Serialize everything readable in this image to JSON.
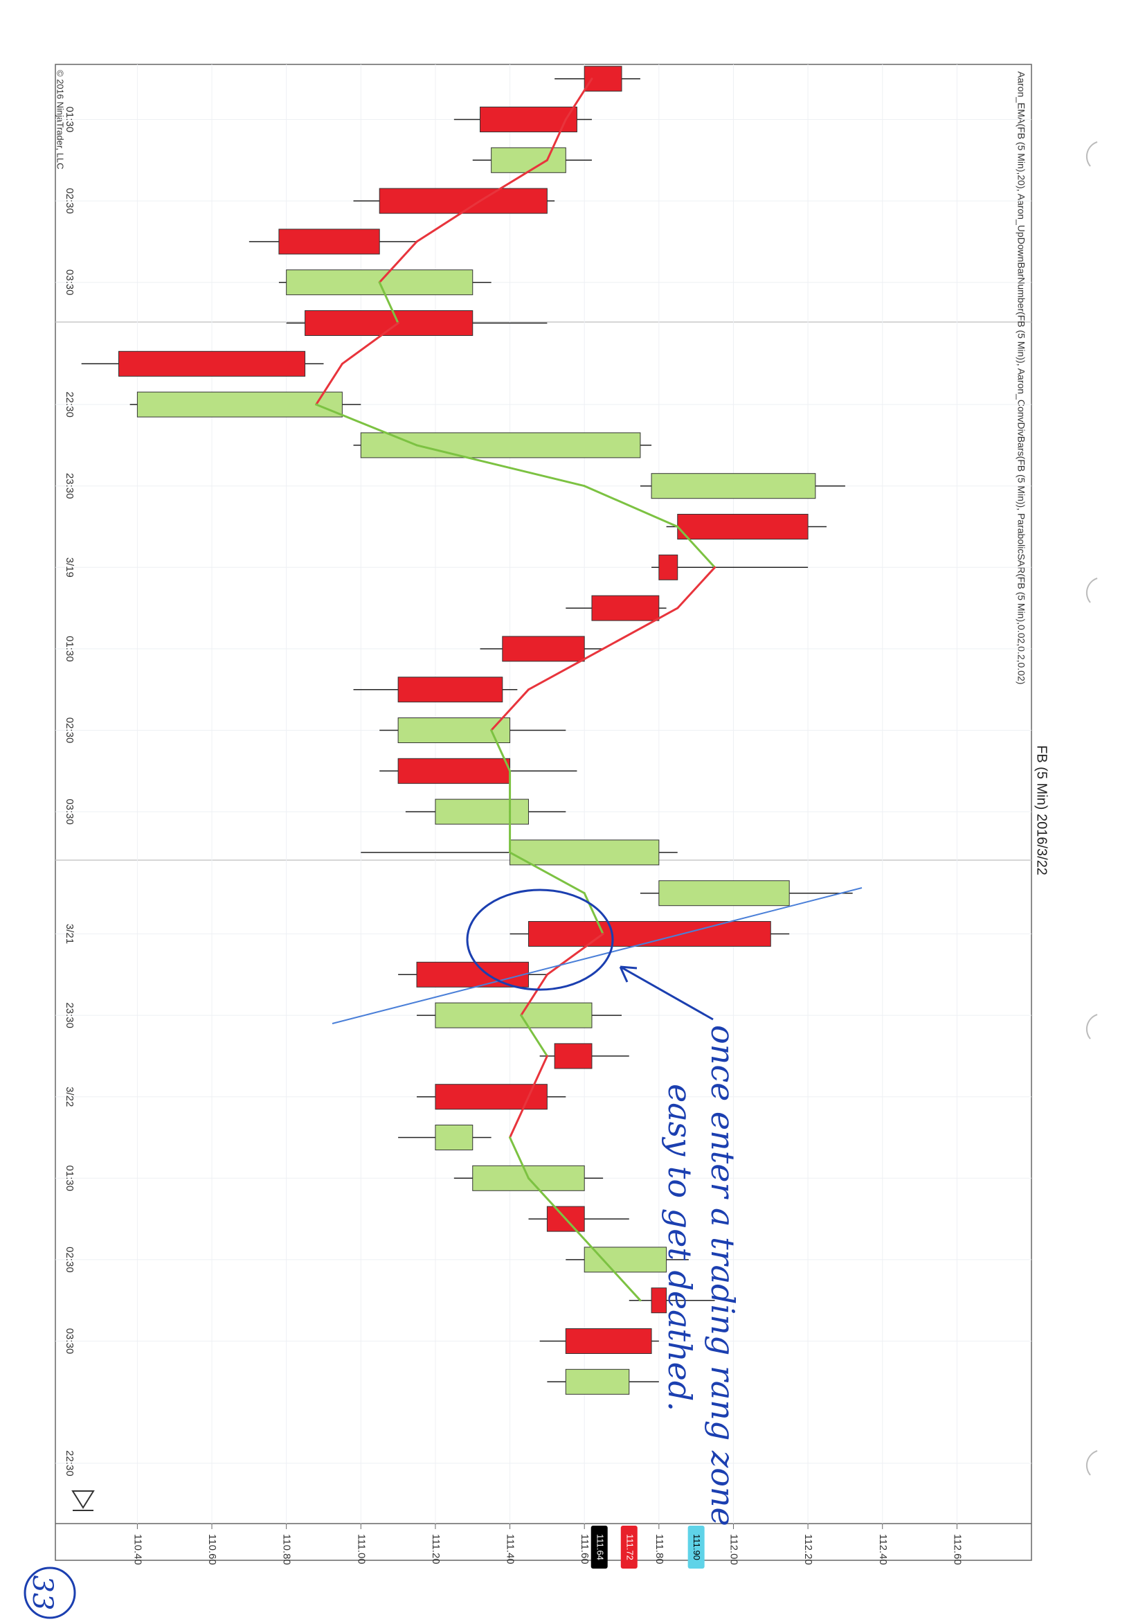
{
  "chart_data": {
    "type": "candlestick",
    "title": "FB (5 Min) 2016/3/22",
    "subtitle": "Aaron_EMA(FB (5 Min),20), Aaron_UpDownBarNumber(FB (5 Min)), Aaron_ConvDivBars(FB (5 Min)), ParabolicSAR(FB (5 Min),0.02,0.2,0.02)",
    "footer": "© 2016 NinjaTrader, LLC",
    "categories": [
      null,
      "01:30",
      null,
      "02:30",
      null,
      "03:30",
      null,
      null,
      "22:30",
      null,
      "23:30",
      null,
      "3/19",
      null,
      "01:30",
      null,
      "02:30",
      null,
      "03:30",
      null,
      null,
      "3/21",
      null,
      "23:30",
      null,
      "3/22",
      null,
      "01:30",
      null,
      "02:30",
      null,
      "03:30",
      null,
      null,
      "22:30"
    ],
    "open": [
      111.7,
      111.58,
      111.35,
      111.5,
      111.05,
      110.8,
      111.3,
      110.85,
      110.4,
      111.0,
      111.78,
      112.2,
      111.85,
      111.8,
      111.6,
      111.38,
      111.1,
      111.4,
      111.2,
      111.4,
      111.8,
      112.1,
      111.45,
      111.2,
      111.62,
      111.5,
      111.2,
      111.3,
      111.6,
      111.6,
      111.82,
      111.78,
      111.55,
      null,
      null
    ],
    "high": [
      111.75,
      111.62,
      111.62,
      111.52,
      111.15,
      111.35,
      111.5,
      110.9,
      111.0,
      111.78,
      112.3,
      112.25,
      112.2,
      111.82,
      111.65,
      111.42,
      111.55,
      111.58,
      111.55,
      111.85,
      112.32,
      112.15,
      111.5,
      111.7,
      111.72,
      111.55,
      111.35,
      111.65,
      111.72,
      111.88,
      111.95,
      111.8,
      111.8,
      null,
      null
    ],
    "low": [
      111.52,
      111.25,
      111.3,
      110.98,
      110.7,
      110.78,
      110.8,
      110.25,
      110.38,
      110.98,
      111.75,
      111.82,
      111.78,
      111.55,
      111.32,
      110.98,
      111.05,
      111.05,
      111.12,
      111.0,
      111.75,
      111.4,
      111.1,
      111.15,
      111.48,
      111.15,
      111.1,
      111.25,
      111.45,
      111.55,
      111.72,
      111.48,
      111.5,
      null,
      null
    ],
    "close": [
      111.6,
      111.32,
      111.55,
      111.05,
      110.78,
      111.3,
      110.85,
      110.35,
      110.95,
      111.75,
      112.22,
      111.85,
      111.8,
      111.62,
      111.38,
      111.1,
      111.4,
      111.1,
      111.45,
      111.8,
      112.15,
      111.45,
      111.15,
      111.62,
      111.52,
      111.2,
      111.3,
      111.6,
      111.5,
      111.82,
      111.78,
      111.55,
      111.72,
      null,
      null
    ],
    "up_color": "#b8e184",
    "down_color": "#e8202a",
    "ema": {
      "values": [
        111.62,
        111.55,
        111.5,
        111.32,
        111.15,
        111.05,
        111.1,
        110.95,
        110.88,
        111.15,
        111.6,
        111.85,
        111.95,
        111.85,
        111.65,
        111.45,
        111.35,
        111.4,
        111.4,
        111.4,
        111.6,
        111.65,
        111.5,
        111.43,
        111.5,
        111.45,
        111.4,
        111.45,
        111.55,
        111.65,
        111.75,
        null,
        null,
        null,
        null
      ],
      "up_color": "#7cc242",
      "down_color": "#e8343c"
    },
    "ylim": [
      110.18,
      112.8
    ],
    "yticks": [
      {
        "value": 110.4,
        "label": "110.40"
      },
      {
        "value": 110.6,
        "label": "110.60"
      },
      {
        "value": 110.8,
        "label": "110.80"
      },
      {
        "value": 111.0,
        "label": "111.00"
      },
      {
        "value": 111.2,
        "label": "111.20"
      },
      {
        "value": 111.4,
        "label": "111.40"
      },
      {
        "value": 111.6,
        "label": "111.60"
      },
      {
        "value": 111.8,
        "label": "111.80"
      },
      {
        "value": 112.0,
        "label": "112.00"
      },
      {
        "value": 112.2,
        "label": "112.20"
      },
      {
        "value": 112.4,
        "label": "112.40"
      },
      {
        "value": 112.6,
        "label": "112.60"
      }
    ],
    "price_markers": [
      {
        "value": 111.72,
        "label": "111.72",
        "color": "#e8202a"
      },
      {
        "value": 111.64,
        "label": "111.64",
        "color": "#000000"
      },
      {
        "value": 111.9,
        "label": "111.90",
        "color": "#5fd3e8"
      }
    ],
    "grid": true
  },
  "page": {
    "number": "33",
    "annotation": [
      "once enter a trading rang zone",
      "easy to get deathed."
    ]
  }
}
